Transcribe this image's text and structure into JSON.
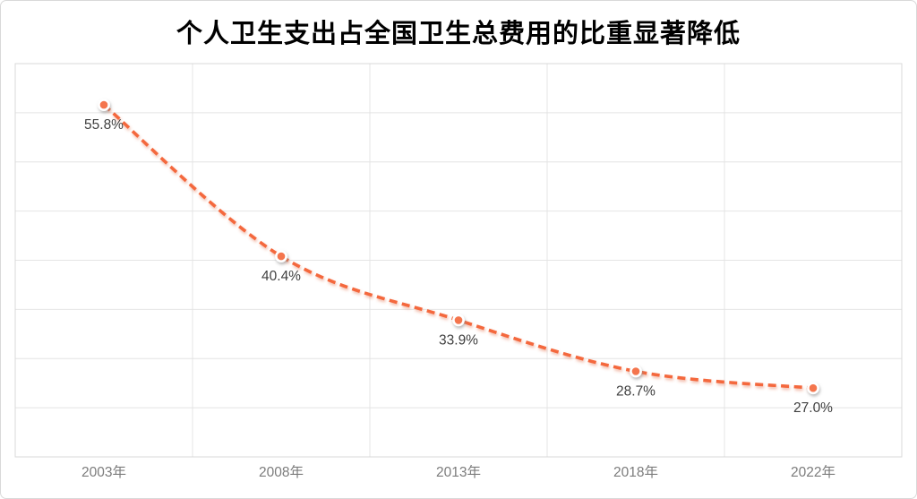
{
  "window": {
    "background": "#ffffff",
    "border_color": "#d9d9d9"
  },
  "chart_data": {
    "type": "line",
    "title": "个人卫生支出占全国卫生总费用的比重显著降低",
    "categories": [
      "2003年",
      "2008年",
      "2013年",
      "2018年",
      "2022年"
    ],
    "series": [
      {
        "values": [
          55.8,
          40.4,
          33.9,
          28.7,
          27.0
        ],
        "point_labels": [
          "55.8%",
          "40.4%",
          "33.9%",
          "28.7%",
          "27.0%"
        ]
      }
    ],
    "xlabel": "",
    "ylabel": "",
    "ylim": [
      20,
      60
    ],
    "y_step": 5,
    "grid": true,
    "y_axis_tick_labels_visible": false,
    "legend_position": "none",
    "line_style": "dashed",
    "marker": "circle",
    "colors": {
      "line": "#F4683E",
      "marker_fill": "#F4744D",
      "marker_ring": "#FFFFFF",
      "data_label": "#3F3F3F",
      "axis_label": "#7C7C7C",
      "gridline": "#E4E4E4",
      "plot_border": "#D9D9D9",
      "title": "#000000"
    }
  }
}
